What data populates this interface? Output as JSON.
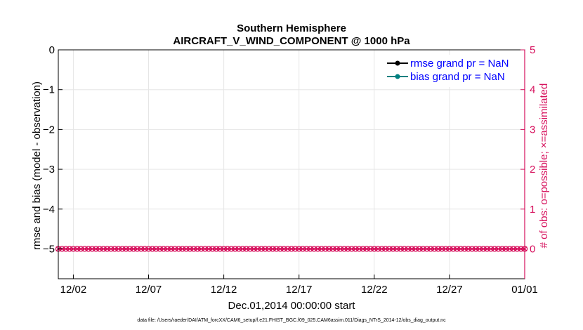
{
  "chart_data": {
    "type": "line",
    "title": "Southern Hemisphere",
    "subtitle": "AIRCRAFT_V_WIND_COMPONENT @ 1000 hPa",
    "xlabel": "Dec.01,2014 00:00:00 start",
    "ylabel": "rmse and bias (model - observation)",
    "y2label": "# of obs: o=possible; ×=assimilated",
    "xlim": [
      0,
      31
    ],
    "ylim": [
      -5.75,
      0
    ],
    "y2lim": [
      -0.75,
      5
    ],
    "x_ticks": [
      {
        "value": 1,
        "label": "12/02"
      },
      {
        "value": 6,
        "label": "12/07"
      },
      {
        "value": 11,
        "label": "12/12"
      },
      {
        "value": 16,
        "label": "12/17"
      },
      {
        "value": 21,
        "label": "12/22"
      },
      {
        "value": 26,
        "label": "12/27"
      },
      {
        "value": 31,
        "label": "01/01"
      }
    ],
    "y_ticks": [
      0,
      -1,
      -2,
      -3,
      -4,
      -5
    ],
    "y2_ticks": [
      0,
      1,
      2,
      3,
      4,
      5
    ],
    "grid": true,
    "legend_position": "top-right",
    "series": [
      {
        "name": "rmse grand pr = NaN",
        "color": "#000000",
        "marker": "circle",
        "values": []
      },
      {
        "name": "bias grand pr = NaN",
        "color": "#008080",
        "marker": "circle",
        "values": []
      }
    ],
    "obs_count": {
      "axis": "right",
      "color": "#d6105c",
      "x_step": 0.25,
      "x_start": 0,
      "x_end": 31,
      "possible_value": 0,
      "assimilated_value": 0
    }
  },
  "colors": {
    "left_axis": "#000000",
    "right_axis": "#d6105c",
    "legend_text": "#0000ff",
    "grid": "#e6e6e6"
  },
  "footnote": "data file: /Users/raeder/DAI/ATM_forcXX/CAM6_setup/f.e21.FHIST_BGC.f09_025.CAM6assim.011/Diags_NTrS_2014-12/obs_diag_output.nc"
}
